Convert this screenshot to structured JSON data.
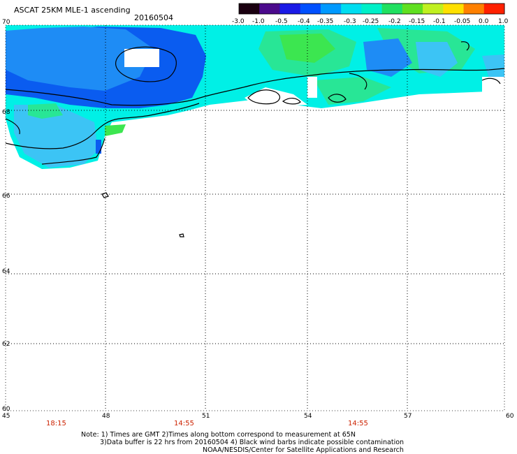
{
  "header": {
    "title": "ASCAT 25KM MLE-1 ascending",
    "date": "20160504"
  },
  "colorbar": {
    "labels": [
      "-3.0",
      "-1.0",
      "-0.5",
      "-0.4",
      "-0.35",
      "-0.3",
      "-0.25",
      "-0.2",
      "-0.15",
      "-0.1",
      "-0.05",
      "0.0",
      "1.0"
    ],
    "colors": [
      "#1a0010",
      "#4b0a8c",
      "#1a1ae6",
      "#0050ff",
      "#0099ff",
      "#00ddf0",
      "#00f0c8",
      "#20e060",
      "#60e020",
      "#c0f020",
      "#ffe000",
      "#ff8000",
      "#ff2000"
    ]
  },
  "map": {
    "lat_labels": [
      "70",
      "68",
      "66",
      "64",
      "62",
      "60"
    ],
    "lon_labels": [
      "45",
      "48",
      "51",
      "54",
      "57",
      "60"
    ],
    "lat_range": [
      60,
      70
    ],
    "lon_range": [
      45,
      60
    ],
    "colors": {
      "background": "#ffffff",
      "grid": "#000000",
      "coast": "#000000",
      "deep_blue": "#0a5cf0",
      "mid_blue": "#1e8cf5",
      "light_blue": "#3cc4f5",
      "cyan": "#00f0e6",
      "green": "#28e696",
      "bright_green": "#3ce650"
    }
  },
  "timeline": {
    "times": [
      {
        "label": "18:15",
        "color": "#cc2200"
      },
      {
        "label": "14:55",
        "color": "#cc2200"
      },
      {
        "label": "14:55",
        "color": "#cc2200"
      }
    ]
  },
  "footer": {
    "note_line1": "Note: 1) Times are GMT 2)Times along bottom correspond to measurement at 65N",
    "note_line2": "3)Data buffer is 22 hrs from 20160504 4) Black wind barbs indicate possible contamination",
    "credit": "NOAA/NESDIS/Center for Satellite Applications and Research"
  }
}
